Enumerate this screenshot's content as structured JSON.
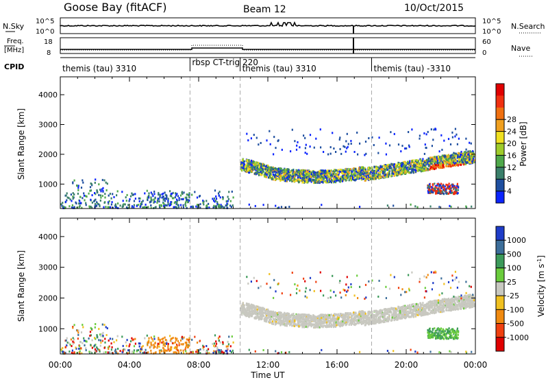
{
  "header": {
    "title": "Goose Bay (fitACF)",
    "beam": "Beam 12",
    "date": "10/Oct/2015"
  },
  "noise_panel": {
    "left_label": "N.Sky",
    "right_label": "N.Search",
    "left_ticks": [
      "10^5",
      "10^0"
    ],
    "right_ticks": [
      "10^5",
      "10^0"
    ]
  },
  "freq_panel": {
    "left_label_1": "Freq.",
    "left_label_2": "[MHz]",
    "right_label": "Nave",
    "left_ticks": [
      "18",
      "8"
    ],
    "right_ticks": [
      "60",
      "0"
    ]
  },
  "cpid_panel": {
    "label": "CPID",
    "segments": [
      {
        "label": "themis (tau) 3310",
        "start": 0.0
      },
      {
        "label": "rbsp CT-trig 220",
        "start": 7.5
      },
      {
        "label": "themis (tau) 3310",
        "start": 10.4
      },
      {
        "label": "themis (tau) -3310",
        "start": 18.0
      }
    ]
  },
  "chart_data": [
    {
      "type": "heatmap",
      "xlabel": "Time UT",
      "ylabel": "Slant Range [km]",
      "xlim": [
        0,
        24
      ],
      "ylim": [
        180,
        4600
      ],
      "x_ticks": [
        "00:00",
        "04:00",
        "08:00",
        "12:00",
        "16:00",
        "20:00",
        "00:00"
      ],
      "x_tick_values": [
        0,
        4,
        8,
        12,
        16,
        20,
        24
      ],
      "y_ticks": [
        1000,
        2000,
        3000,
        4000
      ],
      "mode_change_times": [
        7.5,
        10.4,
        18.0
      ],
      "colorbar": {
        "label": "Power [dB]",
        "ticks": [
          "4",
          "8",
          "12",
          "16",
          "20",
          "24",
          "28"
        ],
        "colors": [
          "#0b24ff",
          "#1f4fa0",
          "#3a7f6a",
          "#4fa84a",
          "#9fcc2a",
          "#f0e020",
          "#f0a020",
          "#f07010",
          "#f03010",
          "#e00000"
        ],
        "range": [
          0,
          30
        ]
      }
    },
    {
      "type": "heatmap",
      "xlabel": "Time UT",
      "ylabel": "Slant Range [km]",
      "xlim": [
        0,
        24
      ],
      "ylim": [
        180,
        4600
      ],
      "x_ticks": [
        "00:00",
        "04:00",
        "08:00",
        "12:00",
        "16:00",
        "20:00",
        "00:00"
      ],
      "x_tick_values": [
        0,
        4,
        8,
        12,
        16,
        20,
        24
      ],
      "y_ticks": [
        1000,
        2000,
        3000,
        4000
      ],
      "mode_change_times": [
        7.5,
        10.4,
        18.0
      ],
      "colorbar": {
        "label": "Velocity [m s^-1]",
        "ticks": [
          "1000",
          "500",
          "100",
          "25",
          "-25",
          "-100",
          "-500",
          "-1000"
        ],
        "colors": [
          "#1e3cc8",
          "#3c6e9a",
          "#3c9a5a",
          "#6acc3c",
          "#c8c8c0",
          "#f0c020",
          "#f08a10",
          "#f04010",
          "#e00000"
        ]
      }
    }
  ]
}
